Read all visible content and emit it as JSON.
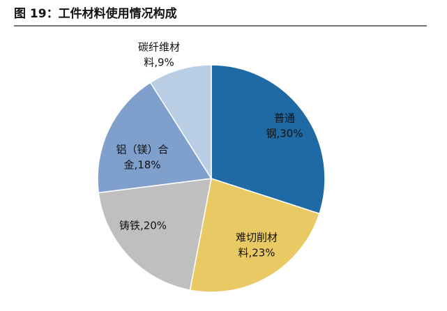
{
  "chart_data": {
    "type": "pie",
    "title": "图 19：工件材料使用情况构成",
    "values": [
      30,
      23,
      20,
      18,
      9
    ],
    "value_labels": [
      [
        "普通",
        "钢,30%"
      ],
      [
        "难切削材",
        "料,23%"
      ],
      [
        "铸铁,20%"
      ],
      [
        "铝（镁）合",
        "金,18%"
      ],
      [
        "碳纤维材",
        "料,9%"
      ]
    ],
    "colors": [
      "#1f6aa5",
      "#e8c963",
      "#bfbfbf",
      "#7f9fcc",
      "#b9cde5"
    ]
  }
}
